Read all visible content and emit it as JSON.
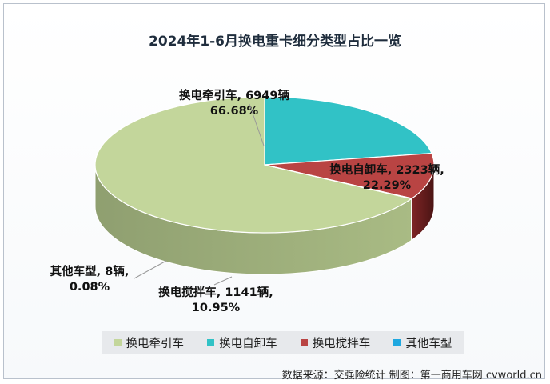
{
  "chart_data": {
    "type": "pie",
    "title": "2024年1-6月换电重卡细分类型占比一览",
    "series": [
      {
        "name": "换电牵引车",
        "value": 6949,
        "label_line1": "换电牵引车, 6949辆",
        "label_line2": "66.68%",
        "percent": 66.68,
        "color": "#c3d69b"
      },
      {
        "name": "换电自卸车",
        "value": 2323,
        "label_line1": "换电自卸车, 2323辆,",
        "label_line2": "22.29%",
        "percent": 22.29,
        "color": "#31c2c6"
      },
      {
        "name": "换电搅拌车",
        "value": 1141,
        "label_line1": "换电搅拌车, 1141辆,",
        "label_line2": "10.95%",
        "percent": 10.95,
        "color": "#b94443"
      },
      {
        "name": "其他车型",
        "value": 8,
        "label_line1": "其他车型, 8辆,",
        "label_line2": "0.08%",
        "percent": 0.08,
        "color": "#1fa8e0"
      }
    ],
    "legend_position": "bottom"
  },
  "source": "数据来源：交强险统计  制图：第一商用车网 cvworld.cn"
}
